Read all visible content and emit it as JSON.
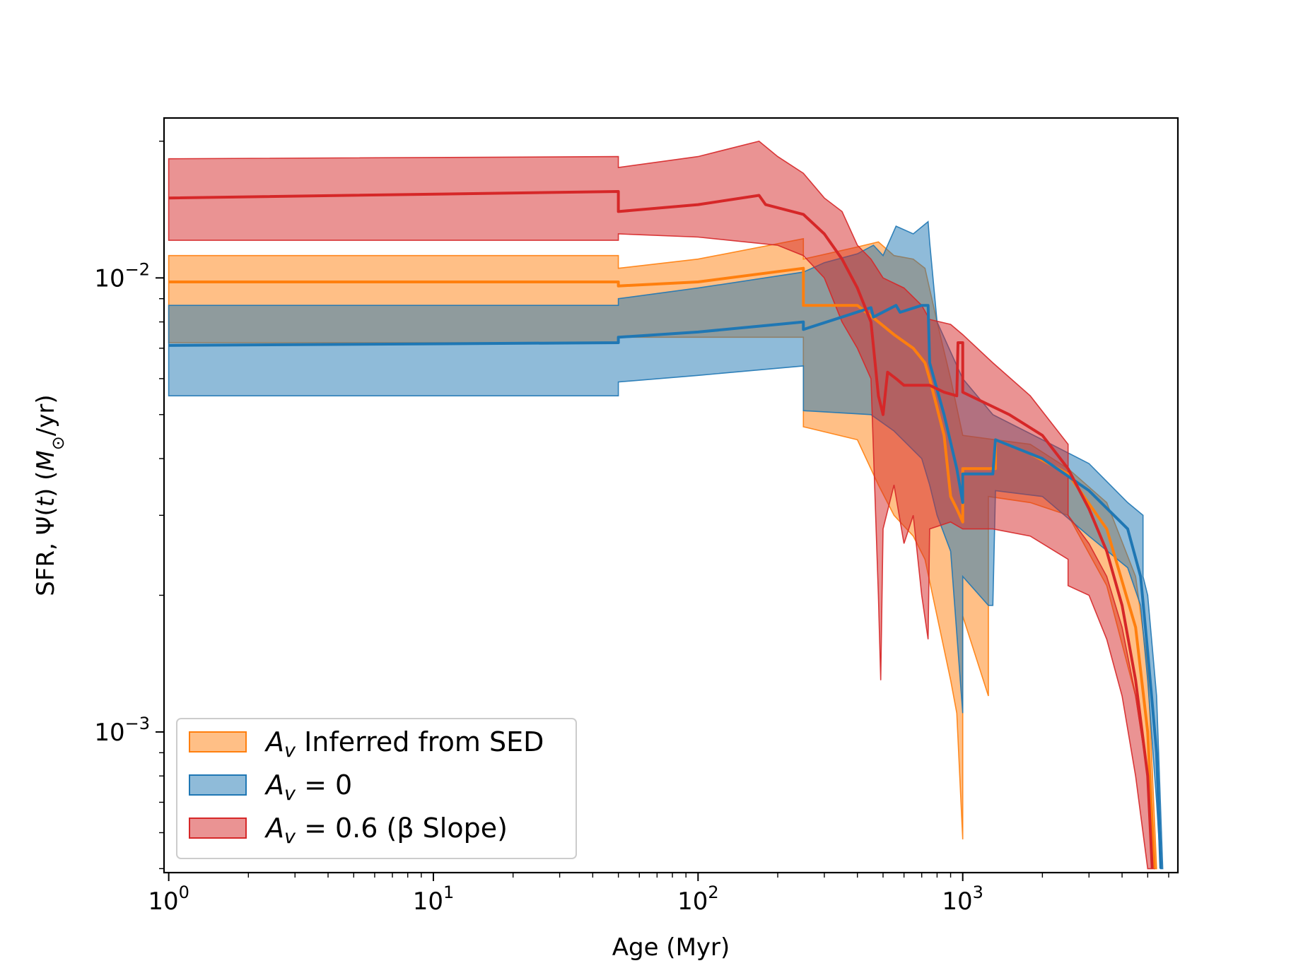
{
  "chart_data": {
    "type": "line",
    "title": "",
    "xlabel": "Age (Myr)",
    "ylabel": "SFR, Ψ(t) (M⊙/yr)",
    "xscale": "log",
    "yscale": "log",
    "xlim": [
      0.96,
      6500
    ],
    "ylim": [
      0.00049,
      0.0225
    ],
    "xticks": [
      {
        "value": 1,
        "base": "10",
        "exp": "0"
      },
      {
        "value": 10,
        "base": "10",
        "exp": "1"
      },
      {
        "value": 100,
        "base": "10",
        "exp": "2"
      },
      {
        "value": 1000,
        "base": "10",
        "exp": "3"
      }
    ],
    "yticks": [
      {
        "value": 0.001,
        "base": "10",
        "exp": "−3"
      },
      {
        "value": 0.01,
        "base": "10",
        "exp": "−2"
      }
    ],
    "legend_position": "lower-left",
    "series": [
      {
        "name": "A_v Inferred from SED",
        "legend_label": {
          "var": "A",
          "sub": "v",
          "rest": " Inferred from SED"
        },
        "color": "#ff7f0e",
        "median": [
          [
            1,
            0.0098
          ],
          [
            50,
            0.0098
          ],
          [
            50,
            0.0096
          ],
          [
            100,
            0.0098
          ],
          [
            250,
            0.0105
          ],
          [
            250,
            0.0087
          ],
          [
            300,
            0.0087
          ],
          [
            400,
            0.0087
          ],
          [
            480,
            0.008
          ],
          [
            550,
            0.0075
          ],
          [
            650,
            0.007
          ],
          [
            720,
            0.0065
          ],
          [
            750,
            0.006
          ],
          [
            850,
            0.0045
          ],
          [
            900,
            0.0033
          ],
          [
            950,
            0.0031
          ],
          [
            1000,
            0.0029
          ],
          [
            1000,
            0.0038
          ],
          [
            1330,
            0.0038
          ],
          [
            1330,
            0.0044
          ],
          [
            1800,
            0.0041
          ],
          [
            2500,
            0.0037
          ],
          [
            3500,
            0.0028
          ],
          [
            4500,
            0.0017
          ],
          [
            5000,
            0.001
          ],
          [
            5300,
            0.0005
          ]
        ],
        "lower": [
          [
            1,
            0.0072
          ],
          [
            50,
            0.0072
          ],
          [
            50,
            0.0074
          ],
          [
            100,
            0.0074
          ],
          [
            250,
            0.0074
          ],
          [
            250,
            0.0047
          ],
          [
            400,
            0.0044
          ],
          [
            480,
            0.0035
          ],
          [
            550,
            0.003
          ],
          [
            650,
            0.0027
          ],
          [
            720,
            0.0024
          ],
          [
            800,
            0.0018
          ],
          [
            900,
            0.0013
          ],
          [
            950,
            0.0011
          ],
          [
            1000,
            0.00058
          ],
          [
            1000,
            0.0018
          ],
          [
            1250,
            0.0012
          ],
          [
            1250,
            0.0033
          ],
          [
            1800,
            0.0032
          ],
          [
            2500,
            0.003
          ],
          [
            3500,
            0.0021
          ],
          [
            4500,
            0.0012
          ],
          [
            5000,
            0.0008
          ],
          [
            5300,
            0.0005
          ]
        ],
        "upper": [
          [
            1,
            0.0112
          ],
          [
            50,
            0.0112
          ],
          [
            50,
            0.0105
          ],
          [
            100,
            0.011
          ],
          [
            250,
            0.0122
          ],
          [
            250,
            0.011
          ],
          [
            400,
            0.0117
          ],
          [
            480,
            0.012
          ],
          [
            550,
            0.0112
          ],
          [
            650,
            0.011
          ],
          [
            720,
            0.0105
          ],
          [
            800,
            0.008
          ],
          [
            900,
            0.006
          ],
          [
            1000,
            0.0045
          ],
          [
            1330,
            0.0044
          ],
          [
            1800,
            0.0043
          ],
          [
            2500,
            0.0038
          ],
          [
            3500,
            0.0032
          ],
          [
            4500,
            0.0022
          ],
          [
            5000,
            0.0014
          ],
          [
            5400,
            0.0005
          ]
        ]
      },
      {
        "name": "A_v = 0",
        "legend_label": {
          "var": "A",
          "sub": "v",
          "rest": " = 0"
        },
        "color": "#1f77b4",
        "median": [
          [
            1,
            0.0071
          ],
          [
            50,
            0.0072
          ],
          [
            50,
            0.0074
          ],
          [
            100,
            0.0076
          ],
          [
            200,
            0.0079
          ],
          [
            250,
            0.008
          ],
          [
            250,
            0.0077
          ],
          [
            350,
            0.0082
          ],
          [
            450,
            0.0086
          ],
          [
            460,
            0.0082
          ],
          [
            560,
            0.0087
          ],
          [
            580,
            0.0084
          ],
          [
            700,
            0.0087
          ],
          [
            740,
            0.0087
          ],
          [
            750,
            0.0065
          ],
          [
            850,
            0.005
          ],
          [
            950,
            0.0038
          ],
          [
            1000,
            0.0032
          ],
          [
            1000,
            0.0037
          ],
          [
            1300,
            0.0037
          ],
          [
            1330,
            0.0044
          ],
          [
            2000,
            0.004
          ],
          [
            3000,
            0.0034
          ],
          [
            4200,
            0.0028
          ],
          [
            4700,
            0.0022
          ],
          [
            5000,
            0.0015
          ],
          [
            5400,
            0.0009
          ],
          [
            5600,
            0.0005
          ]
        ],
        "lower": [
          [
            1,
            0.0055
          ],
          [
            50,
            0.0055
          ],
          [
            50,
            0.0059
          ],
          [
            100,
            0.0061
          ],
          [
            250,
            0.0064
          ],
          [
            250,
            0.0051
          ],
          [
            450,
            0.005
          ],
          [
            550,
            0.0046
          ],
          [
            700,
            0.004
          ],
          [
            750,
            0.0035
          ],
          [
            800,
            0.003
          ],
          [
            900,
            0.0025
          ],
          [
            1000,
            0.0011
          ],
          [
            1000,
            0.0022
          ],
          [
            1250,
            0.0019
          ],
          [
            1300,
            0.0019
          ],
          [
            1330,
            0.0034
          ],
          [
            2000,
            0.0033
          ],
          [
            3000,
            0.0027
          ],
          [
            4200,
            0.0023
          ],
          [
            4700,
            0.0019
          ],
          [
            5000,
            0.0013
          ],
          [
            5400,
            0.0007
          ],
          [
            5600,
            0.0005
          ]
        ],
        "upper": [
          [
            1,
            0.0087
          ],
          [
            50,
            0.0087
          ],
          [
            50,
            0.009
          ],
          [
            100,
            0.0095
          ],
          [
            250,
            0.0103
          ],
          [
            300,
            0.0108
          ],
          [
            400,
            0.0113
          ],
          [
            460,
            0.0118
          ],
          [
            500,
            0.0112
          ],
          [
            560,
            0.013
          ],
          [
            650,
            0.0125
          ],
          [
            740,
            0.0133
          ],
          [
            750,
            0.012
          ],
          [
            800,
            0.008
          ],
          [
            1000,
            0.006
          ],
          [
            1300,
            0.005
          ],
          [
            2000,
            0.0044
          ],
          [
            3000,
            0.0039
          ],
          [
            4200,
            0.0032
          ],
          [
            4800,
            0.003
          ],
          [
            4800,
            0.0022
          ],
          [
            5000,
            0.002
          ],
          [
            5400,
            0.0012
          ],
          [
            5700,
            0.0005
          ]
        ]
      },
      {
        "name": "A_v = 0.6 (β Slope)",
        "legend_label": {
          "var": "A",
          "sub": "v",
          "rest": " = 0.6 (β Slope)"
        },
        "color": "#d62728",
        "median": [
          [
            1,
            0.015
          ],
          [
            50,
            0.0155
          ],
          [
            50,
            0.014
          ],
          [
            100,
            0.0145
          ],
          [
            170,
            0.0152
          ],
          [
            180,
            0.0145
          ],
          [
            250,
            0.0138
          ],
          [
            300,
            0.0125
          ],
          [
            350,
            0.011
          ],
          [
            400,
            0.0095
          ],
          [
            450,
            0.008
          ],
          [
            480,
            0.0055
          ],
          [
            500,
            0.005
          ],
          [
            520,
            0.0062
          ],
          [
            560,
            0.006
          ],
          [
            600,
            0.0058
          ],
          [
            700,
            0.0058
          ],
          [
            750,
            0.0058
          ],
          [
            850,
            0.0056
          ],
          [
            950,
            0.0055
          ],
          [
            960,
            0.0072
          ],
          [
            1000,
            0.0072
          ],
          [
            1000,
            0.0056
          ],
          [
            1500,
            0.005
          ],
          [
            2000,
            0.0045
          ],
          [
            2500,
            0.0038
          ],
          [
            3000,
            0.0031
          ],
          [
            3500,
            0.0025
          ],
          [
            4000,
            0.0019
          ],
          [
            4500,
            0.0013
          ],
          [
            5000,
            0.0008
          ],
          [
            5200,
            0.0005
          ]
        ],
        "lower": [
          [
            1,
            0.0121
          ],
          [
            50,
            0.0121
          ],
          [
            50,
            0.0125
          ],
          [
            100,
            0.0123
          ],
          [
            200,
            0.0118
          ],
          [
            250,
            0.0112
          ],
          [
            300,
            0.01
          ],
          [
            350,
            0.008
          ],
          [
            400,
            0.007
          ],
          [
            450,
            0.006
          ],
          [
            480,
            0.002
          ],
          [
            490,
            0.0013
          ],
          [
            500,
            0.0028
          ],
          [
            550,
            0.0035
          ],
          [
            600,
            0.0026
          ],
          [
            650,
            0.003
          ],
          [
            700,
            0.002
          ],
          [
            740,
            0.0016
          ],
          [
            750,
            0.0028
          ],
          [
            900,
            0.0029
          ],
          [
            1000,
            0.0028
          ],
          [
            1300,
            0.0028
          ],
          [
            1800,
            0.0027
          ],
          [
            2500,
            0.0024
          ],
          [
            2500,
            0.0021
          ],
          [
            3000,
            0.002
          ],
          [
            3500,
            0.0016
          ],
          [
            4000,
            0.0012
          ],
          [
            4500,
            0.0008
          ],
          [
            5000,
            0.0005
          ]
        ],
        "upper": [
          [
            1,
            0.0183
          ],
          [
            50,
            0.0185
          ],
          [
            50,
            0.0175
          ],
          [
            100,
            0.0185
          ],
          [
            170,
            0.02
          ],
          [
            200,
            0.0185
          ],
          [
            250,
            0.017
          ],
          [
            300,
            0.015
          ],
          [
            350,
            0.014
          ],
          [
            400,
            0.0118
          ],
          [
            450,
            0.011
          ],
          [
            500,
            0.01
          ],
          [
            600,
            0.0095
          ],
          [
            700,
            0.0087
          ],
          [
            750,
            0.0081
          ],
          [
            900,
            0.0079
          ],
          [
            1000,
            0.0075
          ],
          [
            1300,
            0.0065
          ],
          [
            1800,
            0.0055
          ],
          [
            2500,
            0.0043
          ],
          [
            2500,
            0.003
          ],
          [
            3000,
            0.0026
          ],
          [
            3500,
            0.0022
          ],
          [
            4000,
            0.0017
          ],
          [
            4500,
            0.0012
          ],
          [
            5000,
            0.0008
          ],
          [
            5300,
            0.0005
          ]
        ]
      }
    ]
  }
}
